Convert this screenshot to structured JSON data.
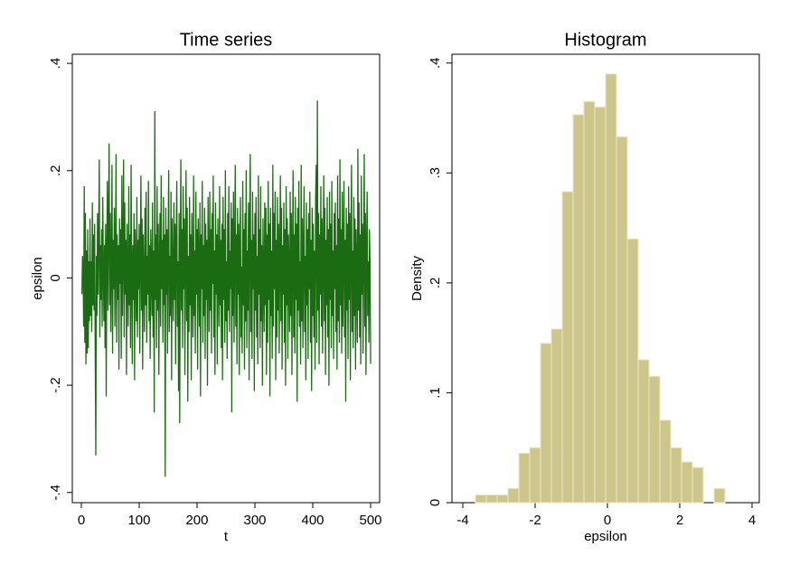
{
  "chart_data": [
    {
      "type": "line",
      "title": "Time series",
      "xlabel": "t",
      "ylabel": "epsilon",
      "color": "#1a6b12",
      "xlim": [
        -15.6,
        515.6
      ],
      "xticks": [
        0,
        100,
        200,
        300,
        400,
        500
      ],
      "ylim": [
        -0.419,
        0.417
      ],
      "yticks": [
        {
          "value": -0.4,
          "label": "-.4"
        },
        {
          "value": -0.2,
          "label": "-.2"
        },
        0,
        {
          "value": 0.2,
          "label": ".2"
        },
        {
          "value": 0.4,
          "label": ".4"
        }
      ],
      "x": [
        1,
        2,
        3,
        4,
        5,
        6,
        7,
        8,
        9,
        10,
        11,
        12,
        13,
        14,
        15,
        16,
        17,
        18,
        19,
        20,
        21,
        22,
        23,
        24,
        25,
        26,
        27,
        28,
        29,
        30,
        31,
        32,
        33,
        34,
        35,
        36,
        37,
        38,
        39,
        40,
        41,
        42,
        43,
        44,
        45,
        46,
        47,
        48,
        49,
        50,
        51,
        52,
        53,
        54,
        55,
        56,
        57,
        58,
        59,
        60,
        61,
        62,
        63,
        64,
        65,
        66,
        67,
        68,
        69,
        70,
        71,
        72,
        73,
        74,
        75,
        76,
        77,
        78,
        79,
        80,
        81,
        82,
        83,
        84,
        85,
        86,
        87,
        88,
        89,
        90,
        91,
        92,
        93,
        94,
        95,
        96,
        97,
        98,
        99,
        100,
        101,
        102,
        103,
        104,
        105,
        106,
        107,
        108,
        109,
        110,
        111,
        112,
        113,
        114,
        115,
        116,
        117,
        118,
        119,
        120,
        121,
        122,
        123,
        124,
        125,
        126,
        127,
        128,
        129,
        130,
        131,
        132,
        133,
        134,
        135,
        136,
        137,
        138,
        139,
        140,
        141,
        142,
        143,
        144,
        145,
        146,
        147,
        148,
        149,
        150,
        151,
        152,
        153,
        154,
        155,
        156,
        157,
        158,
        159,
        160,
        161,
        162,
        163,
        164,
        165,
        166,
        167,
        168,
        169,
        170,
        171,
        172,
        173,
        174,
        175,
        176,
        177,
        178,
        179,
        180,
        181,
        182,
        183,
        184,
        185,
        186,
        187,
        188,
        189,
        190,
        191,
        192,
        193,
        194,
        195,
        196,
        197,
        198,
        199,
        200,
        201,
        202,
        203,
        204,
        205,
        206,
        207,
        208,
        209,
        210,
        211,
        212,
        213,
        214,
        215,
        216,
        217,
        218,
        219,
        220,
        221,
        222,
        223,
        224,
        225,
        226,
        227,
        228,
        229,
        230,
        231,
        232,
        233,
        234,
        235,
        236,
        237,
        238,
        239,
        240,
        241,
        242,
        243,
        244,
        245,
        246,
        247,
        248,
        249,
        250,
        251,
        252,
        253,
        254,
        255,
        256,
        257,
        258,
        259,
        260,
        261,
        262,
        263,
        264,
        265,
        266,
        267,
        268,
        269,
        270,
        271,
        272,
        273,
        274,
        275,
        276,
        277,
        278,
        279,
        280,
        281,
        282,
        283,
        284,
        285,
        286,
        287,
        288,
        289,
        290,
        291,
        292,
        293,
        294,
        295,
        296,
        297,
        298,
        299,
        300,
        301,
        302,
        303,
        304,
        305,
        306,
        307,
        308,
        309,
        310,
        311,
        312,
        313,
        314,
        315,
        316,
        317,
        318,
        319,
        320,
        321,
        322,
        323,
        324,
        325,
        326,
        327,
        328,
        329,
        330,
        331,
        332,
        333,
        334,
        335,
        336,
        337,
        338,
        339,
        340,
        341,
        342,
        343,
        344,
        345,
        346,
        347,
        348,
        349,
        350,
        351,
        352,
        353,
        354,
        355,
        356,
        357,
        358,
        359,
        360,
        361,
        362,
        363,
        364,
        365,
        366,
        367,
        368,
        369,
        370,
        371,
        372,
        373,
        374,
        375,
        376,
        377,
        378,
        379,
        380,
        381,
        382,
        383,
        384,
        385,
        386,
        387,
        388,
        389,
        390,
        391,
        392,
        393,
        394,
        395,
        396,
        397,
        398,
        399,
        400,
        401,
        402,
        403,
        404,
        405,
        406,
        407,
        408,
        409,
        410,
        411,
        412,
        413,
        414,
        415,
        416,
        417,
        418,
        419,
        420,
        421,
        422,
        423,
        424,
        425,
        426,
        427,
        428,
        429,
        430,
        431,
        432,
        433,
        434,
        435,
        436,
        437,
        438,
        439,
        440,
        441,
        442,
        443,
        444,
        445,
        446,
        447,
        448,
        449,
        450,
        451,
        452,
        453,
        454,
        455,
        456,
        457,
        458,
        459,
        460,
        461,
        462,
        463,
        464,
        465,
        466,
        467,
        468,
        469,
        470,
        471,
        472,
        473,
        474,
        475,
        476,
        477,
        478,
        479,
        480,
        481,
        482,
        483,
        484,
        485,
        486,
        487,
        488,
        489,
        490,
        491,
        492,
        493,
        494,
        495,
        496,
        497,
        498,
        499,
        500
      ],
      "values": [
        -0.03,
        0.04,
        0.02,
        -0.09,
        0.17,
        -0.12,
        0.12,
        -0.16,
        0.05,
        -0.14,
        0.09,
        -0.13,
        0.03,
        -0.08,
        0.11,
        -0.07,
        0.03,
        -0.1,
        0.14,
        -0.05,
        0.08,
        -0.06,
        0.1,
        -0.14,
        -0.33,
        0.04,
        -0.07,
        0.12,
        -0.03,
        0.08,
        0.22,
        -0.11,
        0.06,
        -0.04,
        0.09,
        -0.09,
        0.15,
        0.02,
        -0.08,
        0.06,
        -0.13,
        0.1,
        -0.22,
        0.05,
        0.18,
        -0.06,
        0.09,
        0.25,
        -0.05,
        0.12,
        -0.1,
        0.03,
        0.21,
        -0.14,
        0.07,
        -0.02,
        0.13,
        -0.09,
        0.04,
        0.23,
        -0.12,
        0.08,
        -0.04,
        0.06,
        -0.17,
        0.11,
        -0.01,
        0.09,
        -0.15,
        0.19,
        -0.07,
        0.05,
        0.22,
        -0.11,
        0.14,
        -0.03,
        0.07,
        -0.18,
        0.1,
        0.01,
        -0.09,
        0.17,
        -0.05,
        0.08,
        -0.13,
        0.21,
        0.02,
        -0.16,
        0.06,
        -0.04,
        0.12,
        -0.19,
        0.09,
        0.03,
        -0.08,
        0.15,
        -0.11,
        0.07,
        -0.02,
        0.1,
        -0.14,
        0.05,
        0.19,
        -0.06,
        0.11,
        -0.17,
        0.08,
        0.0,
        -0.1,
        0.13,
        -0.05,
        0.16,
        -0.12,
        0.04,
        -0.03,
        0.18,
        -0.08,
        0.06,
        -0.15,
        0.09,
        0.02,
        -0.07,
        0.14,
        -0.11,
        0.05,
        -0.25,
        0.31,
        -0.04,
        0.08,
        -0.13,
        0.17,
        -0.06,
        0.1,
        -0.18,
        0.03,
        0.12,
        -0.09,
        0.19,
        -0.02,
        0.07,
        -0.12,
        0.15,
        -0.05,
        0.08,
        -0.37,
        0.13,
        -0.03,
        0.09,
        -0.14,
        0.06,
        0.2,
        -0.1,
        0.04,
        -0.07,
        0.16,
        -0.19,
        0.11,
        0.01,
        -0.08,
        0.14,
        -0.04,
        0.1,
        -0.16,
        0.07,
        0.18,
        -0.09,
        0.03,
        -0.21,
        0.12,
        -0.27,
        0.05,
        0.22,
        -0.06,
        0.09,
        -0.13,
        0.17,
        -0.02,
        0.11,
        -0.18,
        0.06,
        0.2,
        -0.08,
        0.13,
        -0.23,
        0.04,
        -0.1,
        0.15,
        -0.05,
        0.08,
        -0.19,
        0.12,
        0.02,
        -0.11,
        0.19,
        -0.07,
        0.05,
        -0.14,
        0.16,
        -0.03,
        0.09,
        -0.17,
        0.11,
        0.04,
        -0.09,
        0.14,
        -0.22,
        0.08,
        -0.02,
        0.18,
        -0.12,
        0.06,
        -0.07,
        0.13,
        -0.15,
        0.1,
        -0.04,
        0.07,
        -0.2,
        0.15,
        0.03,
        -0.1,
        0.16,
        -0.06,
        0.09,
        -0.14,
        0.12,
        -0.01,
        0.19,
        -0.11,
        0.05,
        -0.18,
        0.14,
        -0.03,
        0.08,
        -0.16,
        0.11,
        0.02,
        -0.09,
        0.17,
        -0.05,
        0.07,
        -0.13,
        0.1,
        -0.19,
        0.15,
        -0.04,
        0.09,
        -0.12,
        0.2,
        -0.08,
        0.03,
        -0.15,
        0.12,
        -0.06,
        0.17,
        -0.1,
        0.05,
        -0.02,
        0.14,
        -0.25,
        0.11,
        -0.07,
        0.16,
        -0.12,
        0.04,
        0.21,
        -0.09,
        0.08,
        -0.16,
        0.13,
        -0.03,
        0.1,
        -0.18,
        0.06,
        0.15,
        -0.11,
        0.02,
        -0.14,
        0.18,
        -0.05,
        0.09,
        -0.17,
        0.12,
        -0.08,
        0.2,
        -0.13,
        0.05,
        -0.06,
        0.14,
        -0.19,
        0.1,
        0.23,
        -0.1,
        0.07,
        -0.15,
        0.16,
        -0.02,
        0.08,
        -0.21,
        0.12,
        -0.06,
        0.15,
        -0.11,
        0.04,
        -0.16,
        0.19,
        -0.03,
        0.09,
        -0.13,
        0.17,
        -0.08,
        0.06,
        -0.2,
        0.11,
        0.01,
        -0.1,
        0.14,
        -0.05,
        0.13,
        -0.18,
        0.08,
        -0.12,
        0.18,
        -0.04,
        0.1,
        -0.22,
        0.13,
        -0.07,
        0.05,
        -0.15,
        0.21,
        -0.09,
        0.12,
        -0.02,
        0.16,
        -0.19,
        0.07,
        -0.11,
        0.15,
        -0.06,
        0.1,
        -0.14,
        0.04,
        0.19,
        -0.08,
        0.13,
        -0.17,
        0.06,
        -0.03,
        0.14,
        -0.12,
        0.09,
        -0.2,
        0.17,
        -0.05,
        0.11,
        -0.15,
        0.08,
        0.02,
        -0.1,
        0.16,
        -0.07,
        0.12,
        -0.18,
        0.05,
        0.2,
        -0.11,
        0.08,
        -0.14,
        0.15,
        -0.04,
        0.1,
        -0.23,
        0.13,
        -0.06,
        0.18,
        -0.09,
        0.03,
        -0.16,
        0.21,
        -0.08,
        0.11,
        -0.13,
        0.06,
        0.17,
        -0.1,
        0.04,
        -0.19,
        0.14,
        -0.05,
        0.09,
        -0.15,
        0.12,
        -0.02,
        0.16,
        -0.12,
        0.07,
        -0.21,
        0.13,
        -0.07,
        0.1,
        -0.11,
        0.05,
        -0.17,
        0.15,
        0.21,
        -0.12,
        0.33,
        -0.06,
        0.12,
        -0.16,
        0.08,
        -0.03,
        0.17,
        -0.09,
        0.11,
        -0.14,
        0.04,
        0.19,
        -0.08,
        0.13,
        -0.18,
        0.07,
        -0.05,
        0.15,
        -0.11,
        0.09,
        -0.2,
        0.16,
        -0.04,
        0.1,
        -0.13,
        0.18,
        -0.07,
        0.05,
        -0.15,
        0.12,
        -0.02,
        0.14,
        -0.1,
        0.06,
        -0.17,
        0.19,
        -0.08,
        0.11,
        -0.12,
        0.22,
        -0.05,
        0.09,
        -0.14,
        0.16,
        -0.09,
        0.04,
        0.18,
        -0.11,
        0.07,
        -0.23,
        0.13,
        -0.06,
        0.1,
        -0.15,
        0.17,
        -0.04,
        0.12,
        -0.19,
        0.08,
        0.21,
        -0.1,
        0.05,
        -0.13,
        0.15,
        -0.07,
        0.11,
        -0.17,
        0.09,
        0.02,
        -0.12,
        0.24,
        -0.06,
        0.14,
        -0.11,
        0.08,
        -0.16,
        0.19,
        -0.03,
        0.1,
        -0.14,
        0.06,
        0.23,
        -0.09,
        0.12,
        -0.18,
        0.05,
        0.16,
        -0.07,
        0.03,
        -0.12,
        0.09,
        0.03,
        -0.16
      ]
    },
    {
      "type": "histogram",
      "title": "Histogram",
      "xlabel": "epsilon",
      "ylabel": "Density",
      "color": "#cdc68a",
      "xlim": [
        -4.3,
        4.2
      ],
      "xticks": [
        -4,
        -2,
        0,
        2,
        4
      ],
      "ylim": [
        0,
        0.408
      ],
      "yticks": [
        0,
        {
          "value": 0.1,
          "label": ".1"
        },
        {
          "value": 0.2,
          "label": ".2"
        },
        {
          "value": 0.3,
          "label": ".3"
        },
        {
          "value": 0.4,
          "label": ".4"
        }
      ],
      "bins": [
        -3.65,
        -3.35,
        -3.05,
        -2.75,
        -2.45,
        -2.15,
        -1.85,
        -1.55,
        -1.25,
        -0.95,
        -0.65,
        -0.35,
        -0.05,
        0.25,
        0.55,
        0.85,
        1.15,
        1.45,
        1.75,
        2.05,
        2.35,
        2.65,
        2.95,
        3.25
      ],
      "values": [
        0.007,
        0.007,
        0.007,
        0.013,
        0.045,
        0.05,
        0.145,
        0.158,
        0.283,
        0.353,
        0.365,
        0.36,
        0.39,
        0.333,
        0.24,
        0.13,
        0.115,
        0.075,
        0.05,
        0.037,
        0.032,
        0,
        0.013
      ]
    }
  ]
}
